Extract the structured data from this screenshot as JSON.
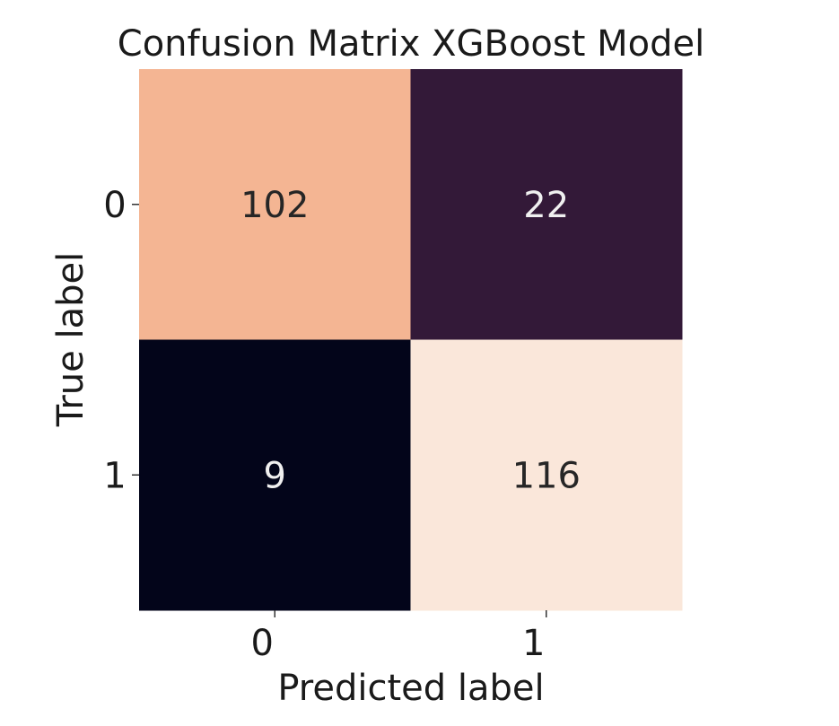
{
  "chart_data": {
    "type": "heatmap",
    "title": "Confusion Matrix XGBoost Model",
    "xlabel": "Predicted label",
    "ylabel": "True label",
    "x_categories": [
      "0",
      "1"
    ],
    "y_categories": [
      "0",
      "1"
    ],
    "values": [
      [
        102,
        22
      ],
      [
        9,
        116
      ]
    ],
    "colors": {
      "cell_0_0": "#f4b593",
      "cell_0_1": "#331938",
      "cell_1_0": "#03051a",
      "cell_1_1": "#fae7da"
    },
    "text_colors": {
      "dark": "#262626",
      "light": "#f0f0f0"
    },
    "colorbar": false,
    "grid": false
  }
}
